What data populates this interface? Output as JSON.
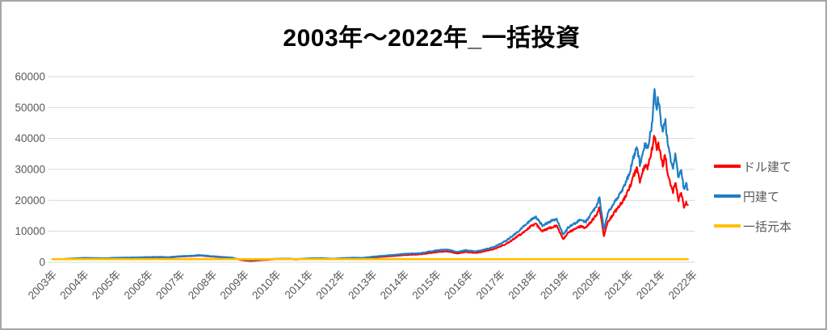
{
  "title": "2003年～2022年_一括投資",
  "legend": [
    {
      "label": "ドル建て",
      "color": "#FF0000"
    },
    {
      "label": "円建て",
      "color": "#1F7EC4"
    },
    {
      "label": "一括元本",
      "color": "#FFC000"
    }
  ],
  "axis": {
    "tick_color": "#595959",
    "grid_color": "#D9D9D9"
  },
  "chart_data": {
    "type": "line",
    "title": "2003年～2022年_一括投資",
    "xlabel": "",
    "ylabel": "",
    "ylim": [
      0,
      60000
    ],
    "yticks": [
      0,
      10000,
      20000,
      30000,
      40000,
      50000,
      60000
    ],
    "xticklabels": [
      "2003年",
      "2004年",
      "2005年",
      "2006年",
      "2007年",
      "2008年",
      "2009年",
      "2010年",
      "2011年",
      "2012年",
      "2013年",
      "2014年",
      "2015年",
      "2016年",
      "2017年",
      "2018年",
      "2019年",
      "2020年",
      "2021年",
      "2021年",
      "2022年"
    ],
    "grid": true,
    "legend_position": "right",
    "x_unit": "year",
    "series": [
      {
        "name": "ドル建て",
        "color": "#FF0000",
        "points": [
          [
            2003.0,
            950
          ],
          [
            2003.3,
            980
          ],
          [
            2003.6,
            1160
          ],
          [
            2004.0,
            1340
          ],
          [
            2004.35,
            1270
          ],
          [
            2004.7,
            1240
          ],
          [
            2005.0,
            1380
          ],
          [
            2005.5,
            1450
          ],
          [
            2006.0,
            1560
          ],
          [
            2006.4,
            1630
          ],
          [
            2006.6,
            1530
          ],
          [
            2007.0,
            1850
          ],
          [
            2007.4,
            2010
          ],
          [
            2007.6,
            2180
          ],
          [
            2007.8,
            1990
          ],
          [
            2008.0,
            1830
          ],
          [
            2008.3,
            1580
          ],
          [
            2008.6,
            1380
          ],
          [
            2008.75,
            980
          ],
          [
            2009.0,
            560
          ],
          [
            2009.2,
            400
          ],
          [
            2009.5,
            660
          ],
          [
            2009.8,
            850
          ],
          [
            2010.0,
            960
          ],
          [
            2010.4,
            1000
          ],
          [
            2010.6,
            870
          ],
          [
            2011.0,
            1090
          ],
          [
            2011.4,
            1140
          ],
          [
            2011.8,
            960
          ],
          [
            2012.0,
            1130
          ],
          [
            2012.4,
            1260
          ],
          [
            2012.7,
            1230
          ],
          [
            2013.0,
            1550
          ],
          [
            2013.4,
            1850
          ],
          [
            2013.7,
            2060
          ],
          [
            2014.0,
            2320
          ],
          [
            2014.5,
            2550
          ],
          [
            2015.0,
            3300
          ],
          [
            2015.35,
            3500
          ],
          [
            2015.65,
            2850
          ],
          [
            2015.9,
            3350
          ],
          [
            2016.2,
            3000
          ],
          [
            2016.5,
            3550
          ],
          [
            2016.8,
            4300
          ],
          [
            2017.0,
            5100
          ],
          [
            2017.2,
            6100
          ],
          [
            2017.4,
            7500
          ],
          [
            2017.6,
            8900
          ],
          [
            2017.8,
            10400
          ],
          [
            2017.95,
            11700
          ],
          [
            2018.1,
            12300
          ],
          [
            2018.3,
            10000
          ],
          [
            2018.5,
            11000
          ],
          [
            2018.75,
            11900
          ],
          [
            2018.95,
            7400
          ],
          [
            2019.1,
            9500
          ],
          [
            2019.3,
            10600
          ],
          [
            2019.5,
            11700
          ],
          [
            2019.65,
            11000
          ],
          [
            2019.8,
            12900
          ],
          [
            2020.0,
            15600
          ],
          [
            2020.08,
            17600
          ],
          [
            2020.22,
            8600
          ],
          [
            2020.35,
            13200
          ],
          [
            2020.5,
            15400
          ],
          [
            2020.65,
            17500
          ],
          [
            2020.8,
            19600
          ],
          [
            2020.95,
            22400
          ],
          [
            2021.05,
            24800
          ],
          [
            2021.15,
            28000
          ],
          [
            2021.25,
            30400
          ],
          [
            2021.35,
            26000
          ],
          [
            2021.45,
            30000
          ],
          [
            2021.52,
            31700
          ],
          [
            2021.58,
            30000
          ],
          [
            2021.65,
            33700
          ],
          [
            2021.72,
            36500
          ],
          [
            2021.8,
            41000
          ],
          [
            2021.86,
            36500
          ],
          [
            2021.92,
            39000
          ],
          [
            2022.0,
            33800
          ],
          [
            2022.07,
            31200
          ],
          [
            2022.13,
            34800
          ],
          [
            2022.22,
            28300
          ],
          [
            2022.3,
            25000
          ],
          [
            2022.38,
            22800
          ],
          [
            2022.45,
            25800
          ],
          [
            2022.55,
            20200
          ],
          [
            2022.63,
            22500
          ],
          [
            2022.72,
            17800
          ],
          [
            2022.79,
            19200
          ],
          [
            2022.85,
            18300
          ]
        ]
      },
      {
        "name": "円建て",
        "color": "#1F7EC4",
        "points": [
          [
            2003.0,
            950
          ],
          [
            2003.3,
            1000
          ],
          [
            2003.6,
            1200
          ],
          [
            2004.0,
            1400
          ],
          [
            2004.35,
            1330
          ],
          [
            2004.7,
            1300
          ],
          [
            2005.0,
            1450
          ],
          [
            2005.5,
            1520
          ],
          [
            2006.0,
            1650
          ],
          [
            2006.4,
            1720
          ],
          [
            2006.6,
            1620
          ],
          [
            2007.0,
            1950
          ],
          [
            2007.4,
            2120
          ],
          [
            2007.6,
            2300
          ],
          [
            2007.8,
            2100
          ],
          [
            2008.0,
            1950
          ],
          [
            2008.3,
            1700
          ],
          [
            2008.6,
            1500
          ],
          [
            2008.75,
            1100
          ],
          [
            2009.0,
            800
          ],
          [
            2009.2,
            700
          ],
          [
            2009.5,
            820
          ],
          [
            2009.8,
            1000
          ],
          [
            2010.0,
            1120
          ],
          [
            2010.4,
            1160
          ],
          [
            2010.6,
            1010
          ],
          [
            2011.0,
            1260
          ],
          [
            2011.4,
            1310
          ],
          [
            2011.8,
            1110
          ],
          [
            2012.0,
            1310
          ],
          [
            2012.4,
            1460
          ],
          [
            2012.7,
            1410
          ],
          [
            2013.0,
            1800
          ],
          [
            2013.4,
            2150
          ],
          [
            2013.7,
            2400
          ],
          [
            2014.0,
            2700
          ],
          [
            2014.5,
            2950
          ],
          [
            2015.0,
            3850
          ],
          [
            2015.35,
            4100
          ],
          [
            2015.65,
            3300
          ],
          [
            2015.9,
            3900
          ],
          [
            2016.2,
            3500
          ],
          [
            2016.5,
            4100
          ],
          [
            2016.8,
            5000
          ],
          [
            2017.0,
            6000
          ],
          [
            2017.2,
            7200
          ],
          [
            2017.4,
            8800
          ],
          [
            2017.6,
            10500
          ],
          [
            2017.8,
            12300
          ],
          [
            2017.95,
            13800
          ],
          [
            2018.1,
            14500
          ],
          [
            2018.3,
            11800
          ],
          [
            2018.5,
            13000
          ],
          [
            2018.75,
            14000
          ],
          [
            2018.95,
            8800
          ],
          [
            2019.1,
            11200
          ],
          [
            2019.3,
            12500
          ],
          [
            2019.5,
            13800
          ],
          [
            2019.65,
            13000
          ],
          [
            2019.8,
            15200
          ],
          [
            2020.0,
            18500
          ],
          [
            2020.08,
            21000
          ],
          [
            2020.22,
            10800
          ],
          [
            2020.35,
            16000
          ],
          [
            2020.5,
            18500
          ],
          [
            2020.65,
            21000
          ],
          [
            2020.8,
            23500
          ],
          [
            2020.95,
            27000
          ],
          [
            2021.05,
            30000
          ],
          [
            2021.15,
            34000
          ],
          [
            2021.25,
            37000
          ],
          [
            2021.35,
            31500
          ],
          [
            2021.45,
            36500
          ],
          [
            2021.52,
            38500
          ],
          [
            2021.58,
            36500
          ],
          [
            2021.65,
            41000
          ],
          [
            2021.72,
            44500
          ],
          [
            2021.8,
            55500
          ],
          [
            2021.86,
            49500
          ],
          [
            2021.92,
            53000
          ],
          [
            2022.0,
            45500
          ],
          [
            2022.07,
            42000
          ],
          [
            2022.13,
            46500
          ],
          [
            2022.22,
            38000
          ],
          [
            2022.3,
            33500
          ],
          [
            2022.38,
            30500
          ],
          [
            2022.45,
            34500
          ],
          [
            2022.55,
            27000
          ],
          [
            2022.63,
            30000
          ],
          [
            2022.72,
            23500
          ],
          [
            2022.79,
            25500
          ],
          [
            2022.85,
            22500
          ]
        ]
      },
      {
        "name": "一括元本",
        "color": "#FFC000",
        "points": [
          [
            2003.0,
            1000
          ],
          [
            2022.85,
            1000
          ]
        ]
      }
    ]
  }
}
